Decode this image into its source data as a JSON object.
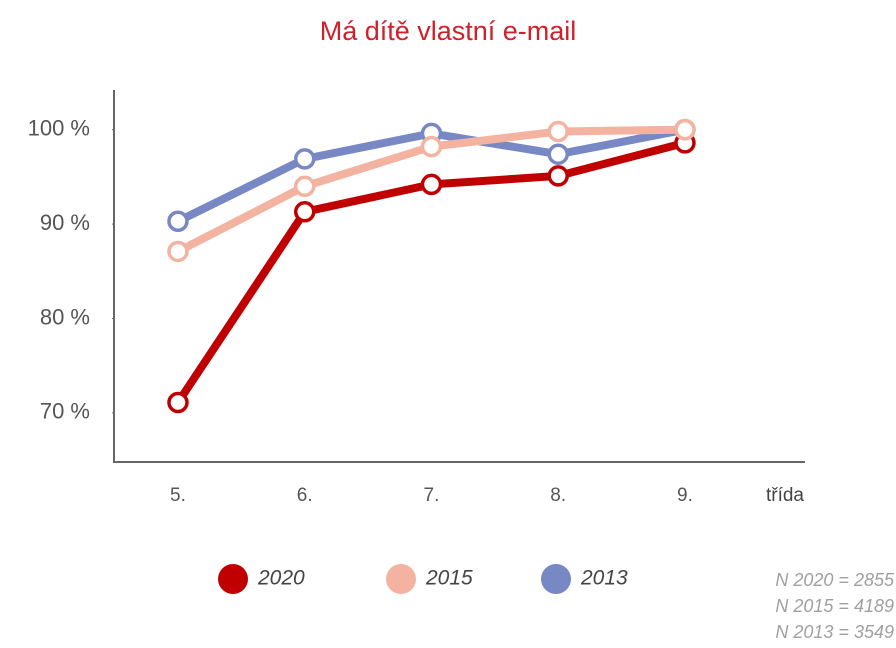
{
  "chart_data": {
    "type": "line",
    "title": "Má dítě vlastní e-mail",
    "x_label": "třída",
    "categories": [
      "5.",
      "6.",
      "7.",
      "8.",
      "9."
    ],
    "series": [
      {
        "name": "2020",
        "color": "#c00000",
        "values": [
          71.1,
          91.3,
          94.2,
          95.1,
          98.6
        ]
      },
      {
        "name": "2015",
        "color": "#f4b3a0",
        "values": [
          87.1,
          94.0,
          98.2,
          99.8,
          100
        ]
      },
      {
        "name": "2013",
        "color": "#7888c4",
        "values": [
          90.3,
          96.9,
          99.6,
          97.4,
          100
        ]
      }
    ],
    "ylim": [
      64.8,
      104.2
    ],
    "yticks": [
      {
        "value": 70,
        "label": "70 %"
      },
      {
        "value": 80,
        "label": "80 %"
      },
      {
        "value": 90,
        "label": "90 %"
      },
      {
        "value": 100,
        "label": "100 %"
      }
    ],
    "notes": [
      "N 2020 = 2855",
      "N 2015 = 4189",
      "N 2013 = 3549"
    ]
  }
}
